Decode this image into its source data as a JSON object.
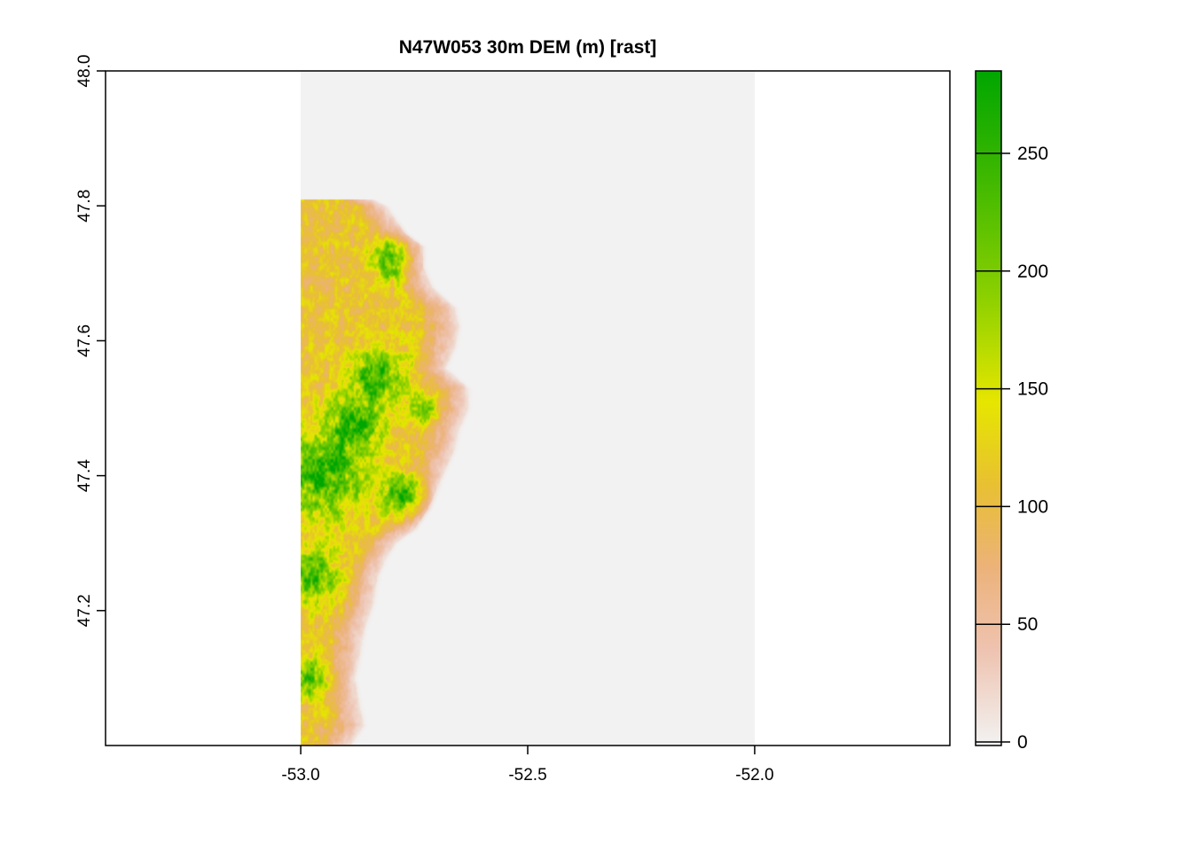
{
  "title": "N47W053 30m DEM (m) [rast]",
  "x_axis": {
    "range": [
      -53.43,
      -51.57
    ],
    "ticks": [
      {
        "value": -53.0,
        "label": "-53.0"
      },
      {
        "value": -52.5,
        "label": "-52.5"
      },
      {
        "value": -52.0,
        "label": "-52.0"
      }
    ]
  },
  "y_axis": {
    "range": [
      47.0,
      48.0
    ],
    "ticks": [
      {
        "value": 47.2,
        "label": "47.2"
      },
      {
        "value": 47.4,
        "label": "47.4"
      },
      {
        "value": 47.6,
        "label": "47.6"
      },
      {
        "value": 47.8,
        "label": "47.8"
      },
      {
        "value": 48.0,
        "label": "48.0"
      }
    ]
  },
  "raster_extent": {
    "lon": [
      -53.0,
      -52.0
    ],
    "lat": [
      47.0,
      48.0
    ]
  },
  "nodata_color": "#f2f2f2",
  "legend": {
    "range": [
      0,
      285
    ],
    "ticks": [
      {
        "value": 0,
        "label": "0"
      },
      {
        "value": 50,
        "label": "50"
      },
      {
        "value": 100,
        "label": "100"
      },
      {
        "value": 150,
        "label": "150"
      },
      {
        "value": 200,
        "label": "200"
      },
      {
        "value": 250,
        "label": "250"
      }
    ],
    "color_stops": [
      {
        "value": 0,
        "color": "#f2f2f2"
      },
      {
        "value": 40,
        "color": "#eec3b0"
      },
      {
        "value": 75,
        "color": "#ecb27a"
      },
      {
        "value": 110,
        "color": "#e8c032"
      },
      {
        "value": 145,
        "color": "#e6e600"
      },
      {
        "value": 190,
        "color": "#8bd000"
      },
      {
        "value": 240,
        "color": "#3eb800"
      },
      {
        "value": 285,
        "color": "#00a600"
      }
    ]
  },
  "landmass": {
    "coast_lon": [
      [
        47.0,
        -52.88
      ],
      [
        47.03,
        -52.85
      ],
      [
        47.06,
        -52.86
      ],
      [
        47.1,
        -52.87
      ],
      [
        47.13,
        -52.86
      ],
      [
        47.17,
        -52.85
      ],
      [
        47.21,
        -52.83
      ],
      [
        47.25,
        -52.82
      ],
      [
        47.28,
        -52.8
      ],
      [
        47.3,
        -52.78
      ],
      [
        47.32,
        -52.74
      ],
      [
        47.35,
        -52.71
      ],
      [
        47.38,
        -52.69
      ],
      [
        47.41,
        -52.67
      ],
      [
        47.44,
        -52.65
      ],
      [
        47.47,
        -52.64
      ],
      [
        47.5,
        -52.62
      ],
      [
        47.53,
        -52.62
      ],
      [
        47.56,
        -52.67
      ],
      [
        47.59,
        -52.65
      ],
      [
        47.62,
        -52.64
      ],
      [
        47.65,
        -52.65
      ],
      [
        47.68,
        -52.7
      ],
      [
        47.71,
        -52.72
      ],
      [
        47.74,
        -52.72
      ],
      [
        47.76,
        -52.76
      ],
      [
        47.78,
        -52.78
      ],
      [
        47.8,
        -52.8
      ],
      [
        47.81,
        -52.83
      ],
      [
        47.78,
        -52.84
      ],
      [
        47.74,
        -52.85
      ],
      [
        47.7,
        -52.87
      ],
      [
        47.66,
        -52.89
      ],
      [
        47.62,
        -52.91
      ],
      [
        47.58,
        -52.93
      ],
      [
        47.54,
        -52.96
      ],
      [
        47.5,
        -52.98
      ],
      [
        47.46,
        -53.0
      ]
    ],
    "peaks": [
      {
        "lon": -52.95,
        "lat": 47.4,
        "elev": 250,
        "radius": 0.06
      },
      {
        "lon": -52.77,
        "lat": 47.37,
        "elev": 270,
        "radius": 0.03
      },
      {
        "lon": -52.83,
        "lat": 47.55,
        "elev": 230,
        "radius": 0.04
      },
      {
        "lon": -52.8,
        "lat": 47.72,
        "elev": 220,
        "radius": 0.03
      },
      {
        "lon": -52.73,
        "lat": 47.5,
        "elev": 200,
        "radius": 0.02
      },
      {
        "lon": -52.97,
        "lat": 47.25,
        "elev": 210,
        "radius": 0.04
      },
      {
        "lon": -52.98,
        "lat": 47.1,
        "elev": 190,
        "radius": 0.03
      },
      {
        "lon": -52.88,
        "lat": 47.48,
        "elev": 240,
        "radius": 0.04
      }
    ]
  }
}
